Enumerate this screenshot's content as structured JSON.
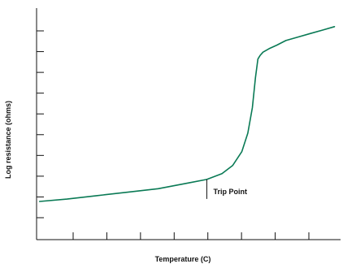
{
  "chart_data": {
    "type": "line",
    "xlabel": "Temperature (C)",
    "ylabel": "Log resistance (ohms)",
    "xlim": [
      0,
      10
    ],
    "ylim": [
      0,
      10
    ],
    "y_tick_count": 10,
    "x_tick_count": 8,
    "grid": false,
    "series": [
      {
        "color": "#0a7a55",
        "x": [
          0.1,
          1.0,
          2.0,
          3.0,
          4.0,
          5.0,
          5.6,
          6.1,
          6.45,
          6.75,
          6.95,
          7.1,
          7.2,
          7.28,
          7.35,
          7.45,
          7.65,
          7.9,
          8.2,
          8.6,
          9.0,
          9.4,
          9.8
        ],
        "y": [
          1.65,
          1.75,
          1.9,
          2.05,
          2.2,
          2.45,
          2.6,
          2.85,
          3.2,
          3.8,
          4.6,
          5.7,
          7.0,
          7.8,
          7.95,
          8.1,
          8.25,
          8.4,
          8.6,
          8.75,
          8.9,
          9.05,
          9.2
        ]
      }
    ],
    "annotations": [
      {
        "text": "Trip Point",
        "x": 5.6,
        "y": 2.6
      }
    ]
  }
}
